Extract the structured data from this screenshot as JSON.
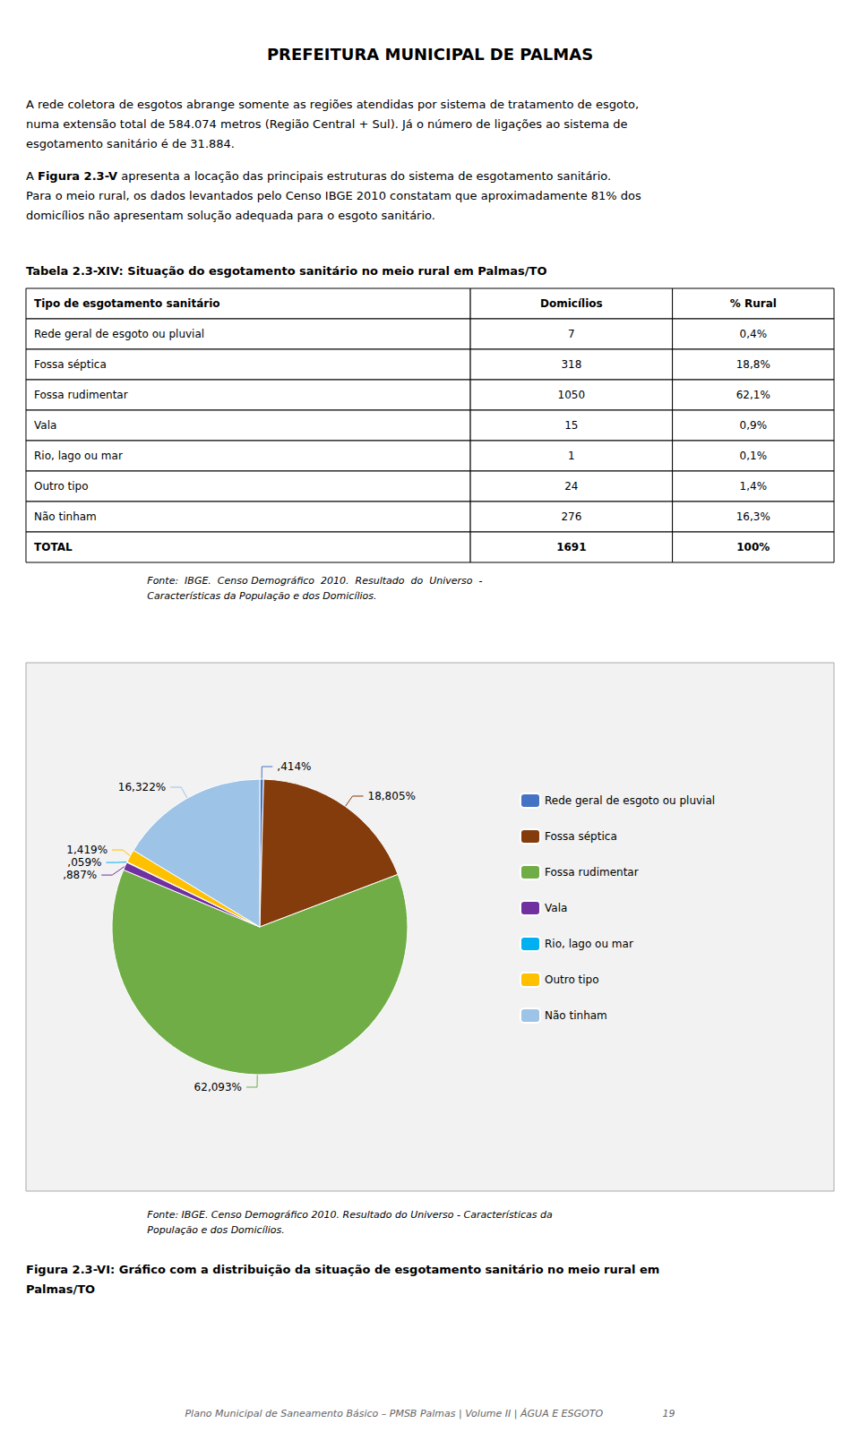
{
  "chart_data": [
    {
      "type": "text",
      "title": "PREFEITURA MUNICIPAL DE PALMAS",
      "annotations": [
        "A rede coletora de esgotos abrange somente as regiões atendidas por sistema de tratamento de esgoto,\nnuma extensão total de 584.074 metros (Região Central + Sul). Já o número de ligações ao sistema de\nesgotamento sanitário é de 31.884.",
        [
          "A ",
          "Figura 2.3-V",
          " apresenta a locação das principais estruturas do sistema de esgotamento sanitário.\nPara o meio rural, os dados levantados pelo Censo IBGE 2010 constatam que aproximadamente 81% dos\ndomicílios não apresentam solução adequada para o esgoto sanitário."
        ],
        "Plano Municipal de Saneamento Básico – PMSB Palmas | Volume II | ÁGUA E ESGOTO                   19"
      ]
    },
    {
      "type": "table",
      "title": "Tabela 2.3-XIV: Situação do esgotamento sanitário no meio rural em Palmas/TO",
      "xlabel": "Tipo de esgotamento sanitário",
      "categories": [
        "Rede geral de esgoto ou pluvial",
        "Fossa séptica",
        "Fossa rudimentar",
        "Vala",
        "Rio, lago ou mar",
        "Outro tipo",
        "Não tinham",
        "TOTAL"
      ],
      "series": [
        {
          "name": "Domicílios",
          "values": [
            7,
            318,
            1050,
            15,
            1,
            24,
            276,
            1691
          ]
        },
        {
          "name": "% Rural",
          "values": [
            0.4,
            18.8,
            62.1,
            0.9,
            0.1,
            1.4,
            16.3,
            100
          ],
          "value_labels": [
            "0,4%",
            "18,8%",
            "62,1%",
            "0,9%",
            "0,1%",
            "1,4%",
            "16,3%",
            "100%"
          ]
        }
      ],
      "annotations": [
        "Fonte:  IBGE.  Censo Demográfico  2010.  Resultado  do  Universo  -\nCaracterísticas da População e dos Domicílios."
      ]
    },
    {
      "type": "pie",
      "title": "Figura 2.3-VI: Gráfico com a distribuição da situação de esgotamento sanitário no meio rural em\nPalmas/TO",
      "categories": [
        "Rede geral de esgoto ou pluvial",
        "Fossa séptica",
        "Fossa rudimentar",
        "Vala",
        "Rio, lago ou mar",
        "Outro tipo",
        "Não tinham"
      ],
      "values": [
        0.414,
        18.805,
        62.093,
        0.887,
        0.059,
        1.419,
        16.322
      ],
      "value_labels": [
        ",414%",
        "18,805%",
        "62,093%",
        ",887%",
        ",059%",
        "1,419%",
        "16,322%"
      ],
      "colors": [
        "#4472C4",
        "#843C0C",
        "#70AD47",
        "#7030A0",
        "#00B0F0",
        "#FFC000",
        "#9DC3E6"
      ],
      "data_labels": true,
      "legend": "right",
      "annotations": [
        "Fonte: IBGE. Censo Demográfico 2010. Resultado do Universo - Características da\nPopulação e dos Domicílios."
      ]
    }
  ]
}
